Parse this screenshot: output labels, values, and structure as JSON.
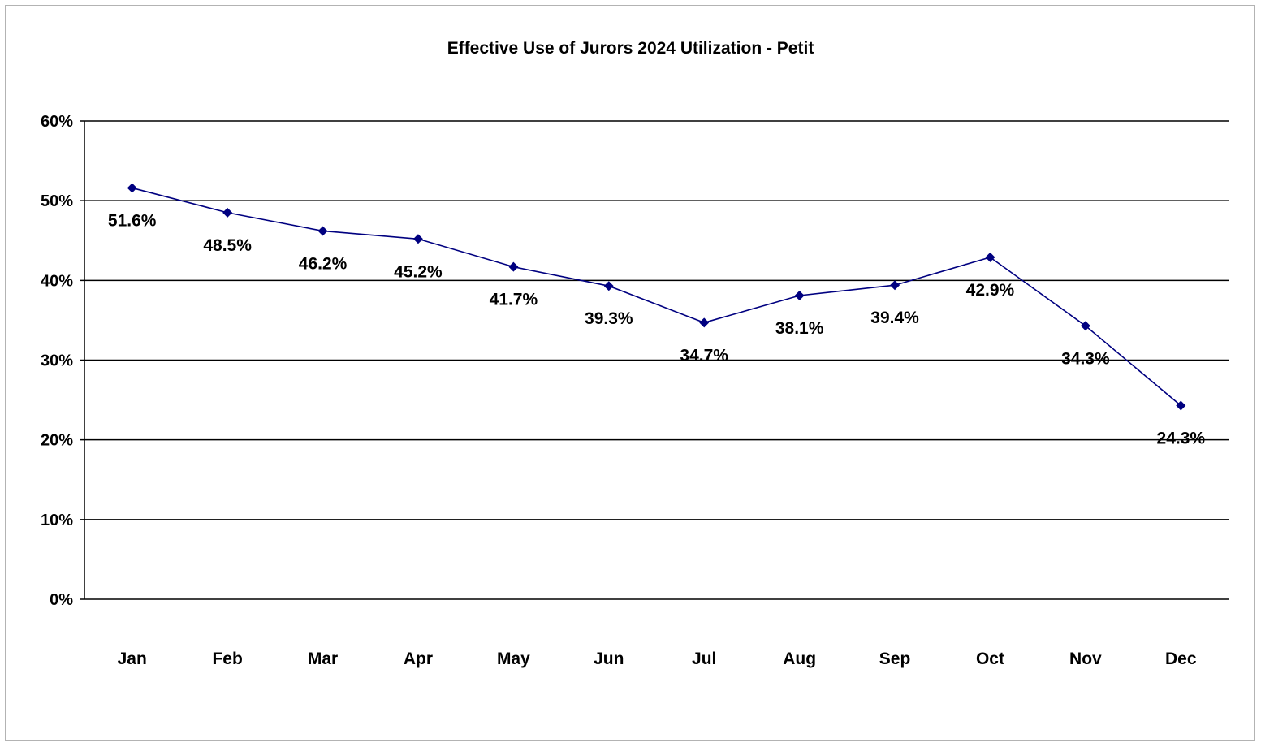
{
  "chart_data": {
    "type": "line",
    "title": "Effective Use of Jurors 2024 Utilization - Petit",
    "xlabel": "",
    "ylabel": "",
    "categories": [
      "Jan",
      "Feb",
      "Mar",
      "Apr",
      "May",
      "Jun",
      "Jul",
      "Aug",
      "Sep",
      "Oct",
      "Nov",
      "Dec"
    ],
    "series": [
      {
        "values": [
          51.6,
          48.5,
          46.2,
          45.2,
          41.7,
          39.3,
          34.7,
          38.1,
          39.4,
          42.9,
          34.3,
          24.3
        ],
        "data_labels": [
          "51.6%",
          "48.5%",
          "46.2%",
          "45.2%",
          "41.7%",
          "39.3%",
          "34.7%",
          "38.1%",
          "39.4%",
          "42.9%",
          "34.3%",
          "24.3%"
        ],
        "color": "#000080",
        "marker": "diamond"
      }
    ],
    "ylim": [
      0,
      60
    ],
    "yticks": [
      0,
      10,
      20,
      30,
      40,
      50,
      60
    ],
    "ytick_labels": [
      "0%",
      "10%",
      "20%",
      "30%",
      "40%",
      "50%",
      "60%"
    ],
    "grid": true,
    "gridline_color": "#000000",
    "legend": "none"
  }
}
